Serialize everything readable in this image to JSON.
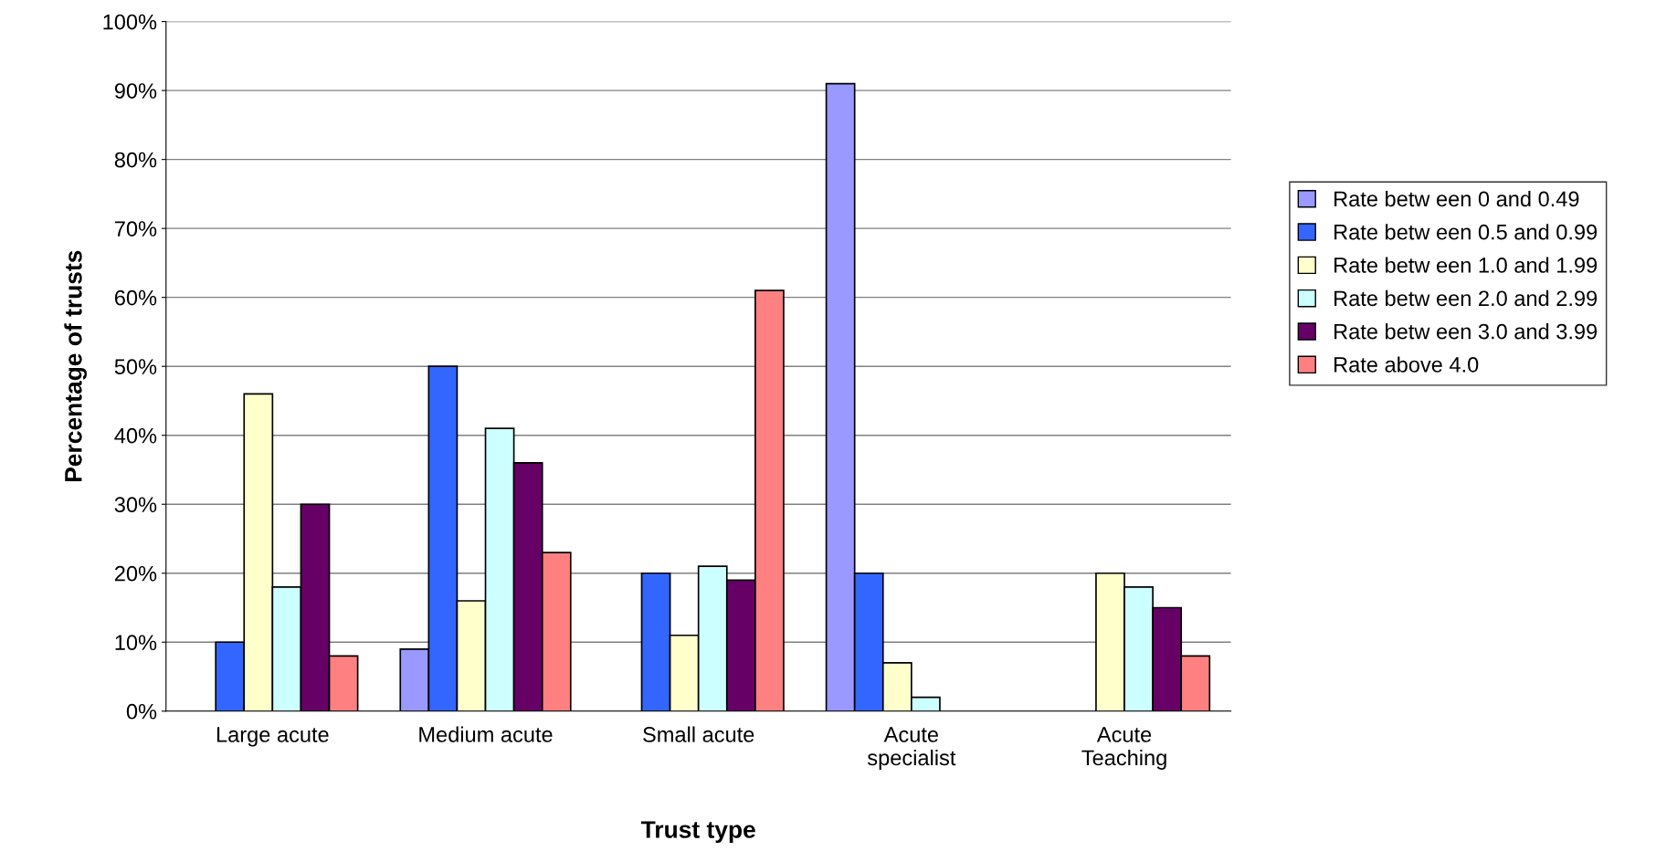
{
  "chart_data": {
    "type": "bar",
    "xlabel": "Trust type",
    "ylabel": "Percentage of trusts",
    "categories": [
      "Large acute",
      "Medium acute",
      "Small acute",
      "Acute\nspecialist",
      "Acute\nTeaching"
    ],
    "series": [
      {
        "name": "Rate betw een 0 and 0.49",
        "color": "#9999ff",
        "values": [
          null,
          9,
          null,
          91,
          null
        ]
      },
      {
        "name": "Rate betw een 0.5 and 0.99",
        "color": "#3366ff",
        "values": [
          10,
          50,
          20,
          20,
          null
        ]
      },
      {
        "name": "Rate betw een 1.0 and 1.99",
        "color": "#ffffcc",
        "values": [
          46,
          16,
          11,
          7,
          20
        ]
      },
      {
        "name": "Rate betw een 2.0 and 2.99",
        "color": "#ccffff",
        "values": [
          18,
          41,
          21,
          2,
          18
        ]
      },
      {
        "name": "Rate betw een 3.0 and 3.99",
        "color": "#660066",
        "values": [
          30,
          36,
          19,
          null,
          15
        ]
      },
      {
        "name": "Rate above 4.0",
        "color": "#ff8080",
        "values": [
          8,
          23,
          61,
          null,
          8
        ]
      }
    ],
    "ylim": [
      0,
      100
    ],
    "yticks": [
      {
        "value": 0,
        "label": "0%"
      },
      {
        "value": 10,
        "label": "10%"
      },
      {
        "value": 20,
        "label": "20%"
      },
      {
        "value": 30,
        "label": "30%"
      },
      {
        "value": 40,
        "label": "40%"
      },
      {
        "value": 50,
        "label": "50%"
      },
      {
        "value": 60,
        "label": "60%"
      },
      {
        "value": 70,
        "label": "70%"
      },
      {
        "value": 80,
        "label": "80%"
      },
      {
        "value": 90,
        "label": "90%"
      },
      {
        "value": 100,
        "label": "100%"
      }
    ],
    "grid": "y",
    "legend": "right"
  }
}
